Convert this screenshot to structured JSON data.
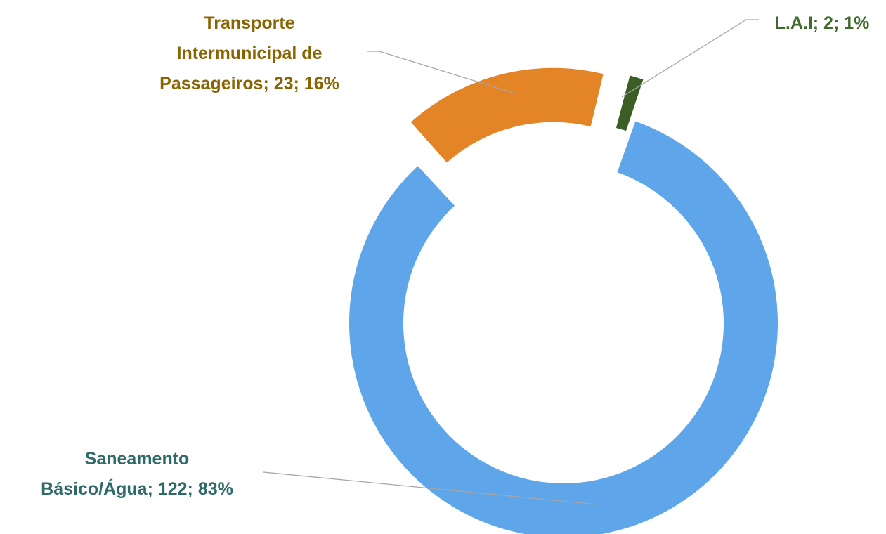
{
  "chart_data": {
    "type": "donut",
    "categories": [
      "Saneamento Básico/Água",
      "Transporte Intermunicipal de Passageiros",
      "L.A.I"
    ],
    "values": [
      122,
      23,
      2
    ],
    "value_labels": [
      "Saneamento\nBásico/Água; 122; 83%",
      "Transporte\nIntermunicipal de\nPassageiros; 23; 16%",
      "L.A.I; 2; 1%"
    ],
    "colors": [
      "#5ea6e9",
      "#e38427",
      "#3b5e27"
    ],
    "label_colors": [
      "#2f6a6a",
      "#8a6400",
      "#3f6b2c"
    ]
  }
}
